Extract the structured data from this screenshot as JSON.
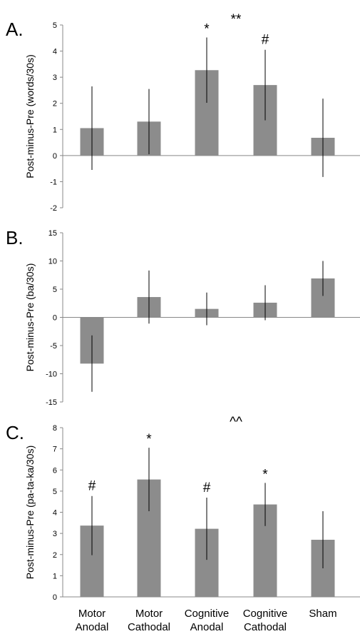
{
  "colors": {
    "bar": "#8c8c8c",
    "axis": "#888888",
    "error": "#000000"
  },
  "categories": [
    [
      "Motor",
      "Anodal"
    ],
    [
      "Motor",
      "Cathodal"
    ],
    [
      "Cognitive",
      "Anodal"
    ],
    [
      "Cognitive",
      "Cathodal"
    ],
    [
      "Sham"
    ]
  ],
  "chart_data": [
    {
      "type": "bar",
      "panel": "A.",
      "ylabel": "Post-minus-Pre (words/30s)",
      "ylim": [
        -2,
        5
      ],
      "yticks": [
        -2,
        -1,
        0,
        1,
        2,
        3,
        4,
        5
      ],
      "grid": false,
      "values": [
        1.05,
        1.3,
        3.27,
        2.7,
        0.68
      ],
      "error": [
        1.6,
        1.25,
        1.25,
        1.35,
        1.5
      ],
      "bar_annotations": [
        null,
        null,
        "*",
        "#",
        null
      ],
      "group_annotation": {
        "text": "**",
        "after_index": 2
      }
    },
    {
      "type": "bar",
      "panel": "B.",
      "ylabel": "Post-minus-Pre (ba/30s)",
      "ylim": [
        -15,
        15
      ],
      "yticks": [
        -15,
        -10,
        -5,
        0,
        5,
        10,
        15
      ],
      "grid": false,
      "values": [
        -8.2,
        3.6,
        1.5,
        2.6,
        6.9
      ],
      "error": [
        5.0,
        4.7,
        2.9,
        3.1,
        3.1
      ],
      "bar_annotations": [
        null,
        null,
        null,
        null,
        null
      ],
      "group_annotation": null
    },
    {
      "type": "bar",
      "panel": "C.",
      "ylabel": "Post-minus-Pre (pa-ta-ka/30s)",
      "ylim": [
        0,
        8
      ],
      "yticks": [
        0,
        1,
        2,
        3,
        4,
        5,
        6,
        7,
        8
      ],
      "grid": false,
      "values": [
        3.37,
        5.55,
        3.22,
        4.37,
        2.7
      ],
      "error": [
        1.4,
        1.5,
        1.47,
        1.02,
        1.35
      ],
      "bar_annotations": [
        "#",
        "*",
        "#",
        "*",
        null
      ],
      "group_annotation": {
        "text": "^^",
        "after_index": 2
      }
    }
  ]
}
